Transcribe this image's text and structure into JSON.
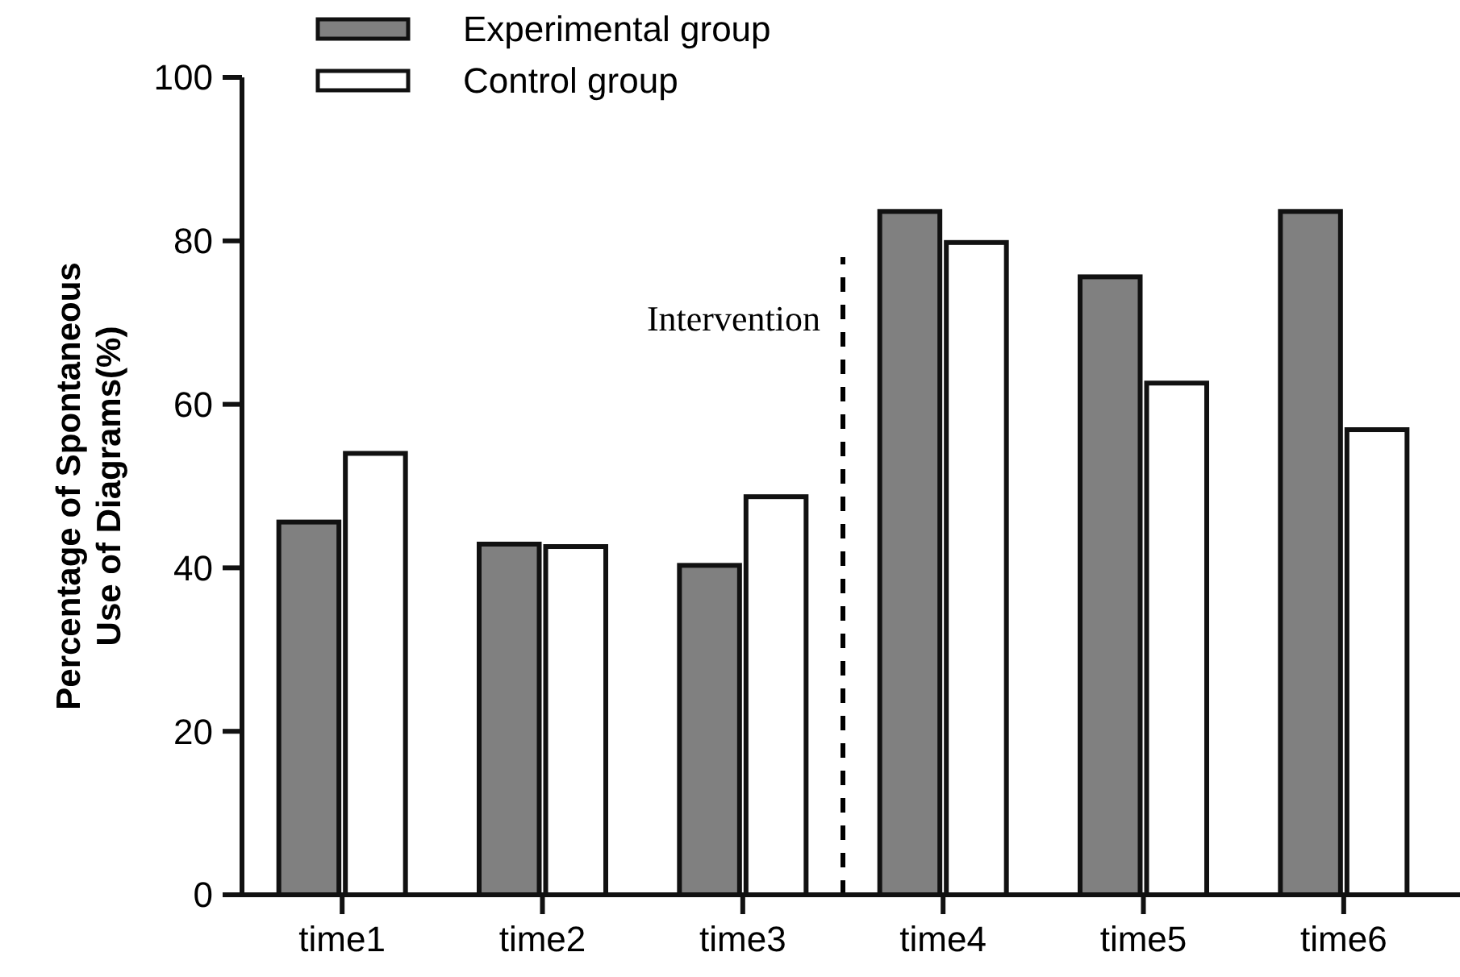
{
  "chart_data": {
    "type": "bar",
    "ylabel": "Percentage of Spontaneous\nUse of Diagrams(%)",
    "categories": [
      "time1",
      "time2",
      "time3",
      "time4",
      "time5",
      "time6"
    ],
    "series": [
      {
        "name": "Experimental group",
        "color": "#808080",
        "values": [
          45.6,
          42.9,
          40.3,
          83.6,
          75.6,
          83.6
        ]
      },
      {
        "name": "Control group",
        "color": "#ffffff",
        "values": [
          54.0,
          42.6,
          48.7,
          79.8,
          62.6,
          56.9
        ]
      }
    ],
    "ylim": [
      0,
      100
    ],
    "yticks": [
      0,
      20,
      40,
      60,
      80,
      100
    ],
    "legend": "top left",
    "annotations": [
      "Intervention"
    ]
  }
}
